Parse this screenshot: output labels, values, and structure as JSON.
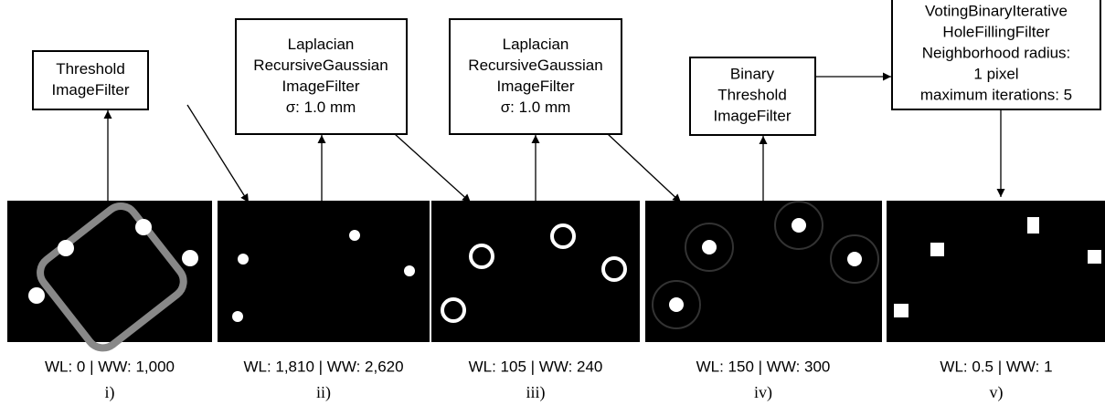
{
  "steps": [
    {
      "box": [
        "Threshold",
        "ImageFilter"
      ],
      "caption": "WL: 0 | WW: 1,000",
      "label": "i)"
    },
    {
      "box": [
        "Laplacian",
        "RecursiveGaussian",
        "ImageFilter",
        "σ: 1.0 mm"
      ],
      "caption": "WL: 1,810 | WW: 2,620",
      "label": "ii)"
    },
    {
      "box": [
        "Laplacian",
        "RecursiveGaussian",
        "ImageFilter",
        "σ: 1.0 mm"
      ],
      "caption": "WL: 105 | WW: 240",
      "label": "iii)"
    },
    {
      "box": [
        "Binary",
        "Threshold",
        "ImageFilter"
      ],
      "caption": "WL: 150 | WW: 300",
      "label": "iv)"
    },
    {
      "box": [
        "VotingBinaryIterative",
        "HoleFillingFilter",
        "Neighborhood radius:",
        "1 pixel",
        "maximum iterations: 5"
      ],
      "caption": "WL: 0.5 | WW: 1",
      "label": "v)"
    }
  ]
}
